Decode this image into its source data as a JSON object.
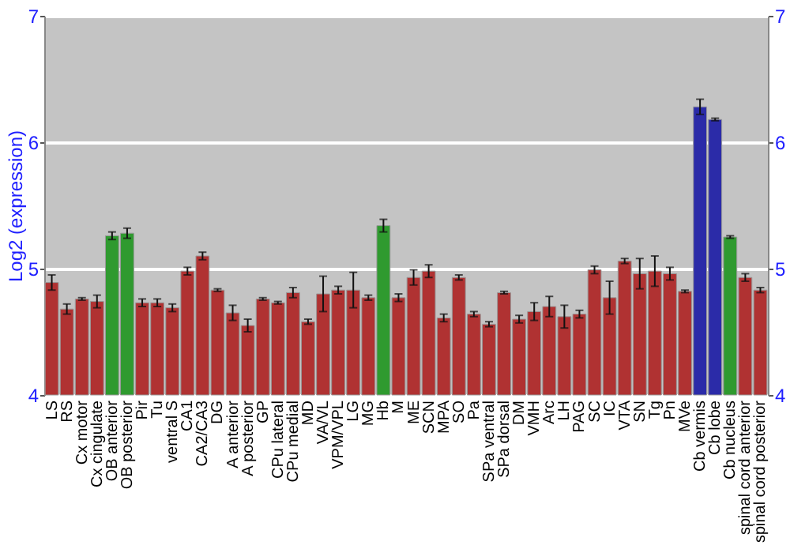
{
  "chart_data": {
    "type": "bar",
    "ylabel": "Log2 (expression)",
    "categories": [
      "LS",
      "RS",
      "Cx motor",
      "Cx cingulate",
      "OB anterior",
      "OB posterior",
      "Pir",
      "Tu",
      "ventral S",
      "CA1",
      "CA2/CA3",
      "DG",
      "A anterior",
      "A posterior",
      "GP",
      "CPu lateral",
      "CPu medial",
      "MD",
      "VA/VL",
      "VPM/VPL",
      "LG",
      "MG",
      "Hb",
      "M",
      "ME",
      "SCN",
      "MPA",
      "SO",
      "Pa",
      "SPa ventral",
      "SPa dorsal",
      "DM",
      "VMH",
      "Arc",
      "LH",
      "PAG",
      "SC",
      "IC",
      "VTA",
      "SN",
      "Tg",
      "Pn",
      "MVe",
      "Cb vermis",
      "Cb lobe",
      "Cb nucleus",
      "spinal cord anterior",
      "spinal cord posterior"
    ],
    "values": [
      4.89,
      4.68,
      4.76,
      4.74,
      5.26,
      5.28,
      4.73,
      4.73,
      4.69,
      4.98,
      5.1,
      4.83,
      4.65,
      4.55,
      4.76,
      4.73,
      4.81,
      4.58,
      4.8,
      4.83,
      4.83,
      4.77,
      5.34,
      4.77,
      4.93,
      4.98,
      4.61,
      4.93,
      4.64,
      4.56,
      4.81,
      4.6,
      4.66,
      4.7,
      4.62,
      4.64,
      4.99,
      4.77,
      5.06,
      4.96,
      4.98,
      4.96,
      4.82,
      6.28,
      6.18,
      5.25,
      4.93,
      4.83
    ],
    "errors": [
      0.06,
      0.04,
      0.01,
      0.05,
      0.03,
      0.04,
      0.03,
      0.03,
      0.03,
      0.03,
      0.03,
      0.01,
      0.06,
      0.05,
      0.01,
      0.01,
      0.04,
      0.02,
      0.14,
      0.03,
      0.14,
      0.02,
      0.05,
      0.03,
      0.06,
      0.05,
      0.03,
      0.02,
      0.02,
      0.02,
      0.01,
      0.03,
      0.07,
      0.08,
      0.09,
      0.03,
      0.03,
      0.13,
      0.02,
      0.12,
      0.12,
      0.05,
      0.01,
      0.06,
      0.01,
      0.01,
      0.03,
      0.02
    ],
    "colors": [
      "#b03232",
      "#b03232",
      "#b03232",
      "#b03232",
      "#2f9a2f",
      "#2f9a2f",
      "#b03232",
      "#b03232",
      "#b03232",
      "#b03232",
      "#b03232",
      "#b03232",
      "#b03232",
      "#b03232",
      "#b03232",
      "#b03232",
      "#b03232",
      "#b03232",
      "#b03232",
      "#b03232",
      "#b03232",
      "#b03232",
      "#2f9a2f",
      "#b03232",
      "#b03232",
      "#b03232",
      "#b03232",
      "#b03232",
      "#b03232",
      "#b03232",
      "#b03232",
      "#b03232",
      "#b03232",
      "#b03232",
      "#b03232",
      "#b03232",
      "#b03232",
      "#b03232",
      "#b03232",
      "#b03232",
      "#b03232",
      "#b03232",
      "#b03232",
      "#2b2ba8",
      "#2b2ba8",
      "#2f9a2f",
      "#b03232",
      "#b03232"
    ],
    "ylim": [
      4,
      7
    ],
    "yticks": [
      4,
      5,
      6,
      7
    ],
    "y2lim": [
      4,
      7
    ],
    "y2ticks": [
      4,
      5,
      6,
      7
    ],
    "grid": "y"
  }
}
